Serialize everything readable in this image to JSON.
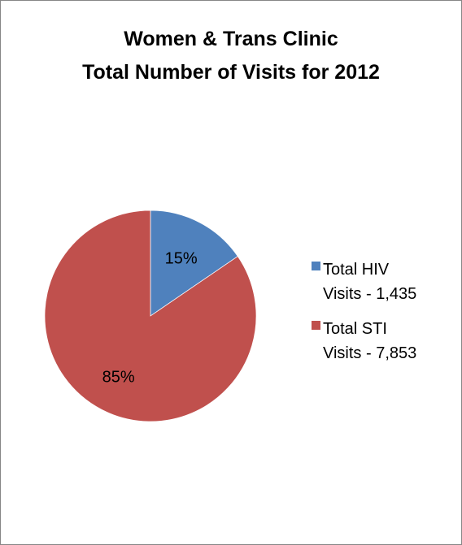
{
  "chart_data": {
    "type": "pie",
    "title_lines": [
      "Women & Trans Clinic",
      "Total Number of Visits for 2012"
    ],
    "slices": [
      {
        "label_lines": [
          "Total HIV",
          "Visits - 1,435"
        ],
        "value": 1435,
        "percent_label": "15%",
        "color": "#4f81bd"
      },
      {
        "label_lines": [
          "Total STI",
          "Visits - 7,853"
        ],
        "value": 7853,
        "percent_label": "85%",
        "color": "#c0504d"
      }
    ],
    "legend_position": "right"
  }
}
